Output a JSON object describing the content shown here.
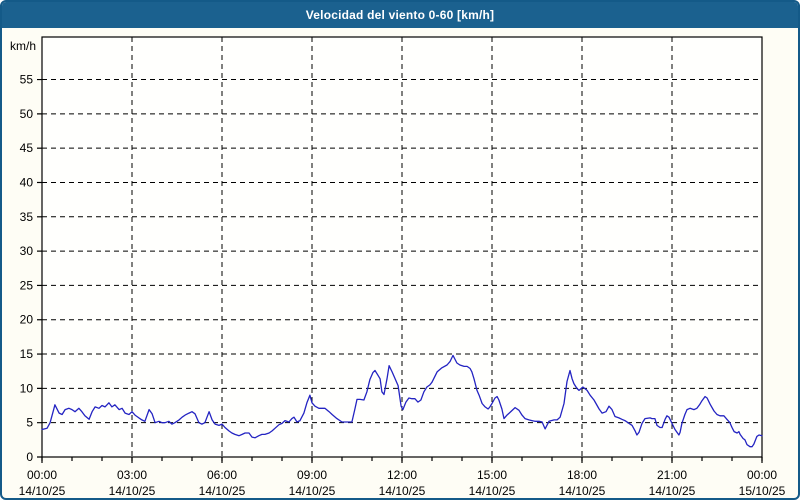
{
  "window": {
    "title": "Velocidad del viento 0-60 [km/h]"
  },
  "colors": {
    "titlebar": "#1b618f",
    "frame_border": "#145a88",
    "window_background": "#fefdf5",
    "plot_background": "#fffffd",
    "axis": "#000000",
    "gridline": "#000000",
    "series_line": "#2424c2",
    "title_text": "#ffffff",
    "tick_text": "#000000"
  },
  "chart_data": {
    "type": "line",
    "title": "Velocidad del viento 0-60 [km/h]",
    "xlabel": "",
    "ylabel": "km/h",
    "ylim": [
      0,
      61.2
    ],
    "xlim_hours": [
      0,
      24
    ],
    "grid": "dashed",
    "legend_position": "none",
    "y_ticks": [
      0,
      5,
      10,
      15,
      20,
      25,
      30,
      35,
      40,
      45,
      50,
      55
    ],
    "x_minor_tick_step_hours": 1,
    "x_ticks": [
      {
        "hours": 0,
        "time": "00:00",
        "date": "14/10/25"
      },
      {
        "hours": 3,
        "time": "03:00",
        "date": "14/10/25"
      },
      {
        "hours": 6,
        "time": "06:00",
        "date": "14/10/25"
      },
      {
        "hours": 9,
        "time": "09:00",
        "date": "14/10/25"
      },
      {
        "hours": 12,
        "time": "12:00",
        "date": "14/10/25"
      },
      {
        "hours": 15,
        "time": "15:00",
        "date": "14/10/25"
      },
      {
        "hours": 18,
        "time": "18:00",
        "date": "14/10/25"
      },
      {
        "hours": 21,
        "time": "21:00",
        "date": "14/10/25"
      },
      {
        "hours": 24,
        "time": "00:00",
        "date": "15/10/25"
      }
    ],
    "series": [
      {
        "name": "Velocidad del viento [km/h]",
        "points": [
          [
            0,
            4.0
          ],
          [
            0.17,
            4.2
          ],
          [
            0.27,
            5.0
          ],
          [
            0.4,
            7.1
          ],
          [
            0.43,
            7.6
          ],
          [
            0.57,
            6.4
          ],
          [
            0.67,
            6.2
          ],
          [
            0.77,
            6.9
          ],
          [
            0.9,
            7.1
          ],
          [
            1,
            6.9
          ],
          [
            1.1,
            6.6
          ],
          [
            1.23,
            7.1
          ],
          [
            1.33,
            6.6
          ],
          [
            1.43,
            6.0
          ],
          [
            1.57,
            5.5
          ],
          [
            1.67,
            6.6
          ],
          [
            1.77,
            7.3
          ],
          [
            1.9,
            7.1
          ],
          [
            2,
            7.5
          ],
          [
            2.1,
            7.3
          ],
          [
            2.23,
            7.9
          ],
          [
            2.33,
            7.3
          ],
          [
            2.43,
            7.6
          ],
          [
            2.57,
            6.9
          ],
          [
            2.67,
            7.1
          ],
          [
            2.77,
            6.4
          ],
          [
            2.9,
            6.2
          ],
          [
            3,
            6.6
          ],
          [
            3.1,
            6.1
          ],
          [
            3.23,
            5.7
          ],
          [
            3.33,
            5.4
          ],
          [
            3.43,
            5.2
          ],
          [
            3.57,
            6.9
          ],
          [
            3.67,
            6.3
          ],
          [
            3.77,
            5.0
          ],
          [
            3.9,
            5.2
          ],
          [
            4,
            5.0
          ],
          [
            4.1,
            5.0
          ],
          [
            4.23,
            5.2
          ],
          [
            4.33,
            4.8
          ],
          [
            4.43,
            5.0
          ],
          [
            4.57,
            5.4
          ],
          [
            4.67,
            5.8
          ],
          [
            4.77,
            6.1
          ],
          [
            4.9,
            6.4
          ],
          [
            5,
            6.6
          ],
          [
            5.1,
            6.3
          ],
          [
            5.23,
            5.0
          ],
          [
            5.33,
            4.8
          ],
          [
            5.43,
            5.0
          ],
          [
            5.57,
            6.6
          ],
          [
            5.67,
            5.4
          ],
          [
            5.77,
            4.8
          ],
          [
            5.9,
            4.6
          ],
          [
            6,
            4.8
          ],
          [
            6.1,
            4.3
          ],
          [
            6.23,
            3.8
          ],
          [
            6.33,
            3.5
          ],
          [
            6.43,
            3.3
          ],
          [
            6.57,
            3.1
          ],
          [
            6.67,
            3.3
          ],
          [
            6.77,
            3.5
          ],
          [
            6.9,
            3.5
          ],
          [
            7,
            2.9
          ],
          [
            7.1,
            2.8
          ],
          [
            7.23,
            3.1
          ],
          [
            7.33,
            3.3
          ],
          [
            7.43,
            3.3
          ],
          [
            7.57,
            3.5
          ],
          [
            7.67,
            3.8
          ],
          [
            7.77,
            4.2
          ],
          [
            7.9,
            4.7
          ],
          [
            8,
            4.9
          ],
          [
            8.1,
            5.3
          ],
          [
            8.23,
            5.1
          ],
          [
            8.33,
            5.6
          ],
          [
            8.4,
            5.8
          ],
          [
            8.5,
            5.1
          ],
          [
            8.6,
            5.3
          ],
          [
            8.73,
            6.4
          ],
          [
            8.83,
            7.9
          ],
          [
            8.93,
            9.0
          ],
          [
            9,
            7.9
          ],
          [
            9.1,
            7.4
          ],
          [
            9.23,
            7.1
          ],
          [
            9.33,
            7.1
          ],
          [
            9.43,
            7.1
          ],
          [
            9.57,
            6.6
          ],
          [
            9.67,
            6.2
          ],
          [
            9.83,
            5.6
          ],
          [
            10,
            5.1
          ],
          [
            10.17,
            5.1
          ],
          [
            10.33,
            5.1
          ],
          [
            10.43,
            7.0
          ],
          [
            10.5,
            8.4
          ],
          [
            10.6,
            8.4
          ],
          [
            10.73,
            8.3
          ],
          [
            10.83,
            9.5
          ],
          [
            10.93,
            11.3
          ],
          [
            11.03,
            12.3
          ],
          [
            11.1,
            12.6
          ],
          [
            11.2,
            11.9
          ],
          [
            11.27,
            11.4
          ],
          [
            11.33,
            9.5
          ],
          [
            11.4,
            9.1
          ],
          [
            11.5,
            11.4
          ],
          [
            11.57,
            13.3
          ],
          [
            11.67,
            12.4
          ],
          [
            11.77,
            11.4
          ],
          [
            11.87,
            10.4
          ],
          [
            11.97,
            7.4
          ],
          [
            12.03,
            6.9
          ],
          [
            12.13,
            8.0
          ],
          [
            12.23,
            8.6
          ],
          [
            12.33,
            8.5
          ],
          [
            12.43,
            8.5
          ],
          [
            12.53,
            8.0
          ],
          [
            12.63,
            8.3
          ],
          [
            12.73,
            9.5
          ],
          [
            12.83,
            10.2
          ],
          [
            12.93,
            10.5
          ],
          [
            13,
            10.9
          ],
          [
            13.17,
            12.4
          ],
          [
            13.33,
            13.0
          ],
          [
            13.5,
            13.4
          ],
          [
            13.6,
            13.9
          ],
          [
            13.7,
            14.8
          ],
          [
            13.77,
            14.2
          ],
          [
            13.83,
            13.7
          ],
          [
            13.93,
            13.4
          ],
          [
            14.07,
            13.2
          ],
          [
            14.17,
            13.2
          ],
          [
            14.27,
            12.9
          ],
          [
            14.33,
            12.4
          ],
          [
            14.4,
            11.4
          ],
          [
            14.5,
            9.7
          ],
          [
            14.57,
            9.0
          ],
          [
            14.67,
            7.8
          ],
          [
            14.77,
            7.3
          ],
          [
            14.87,
            7.0
          ],
          [
            14.93,
            7.3
          ],
          [
            15,
            7.8
          ],
          [
            15.1,
            8.6
          ],
          [
            15.17,
            8.8
          ],
          [
            15.23,
            8.3
          ],
          [
            15.33,
            7.0
          ],
          [
            15.4,
            5.6
          ],
          [
            15.5,
            6.1
          ],
          [
            15.6,
            6.5
          ],
          [
            15.77,
            7.2
          ],
          [
            15.9,
            6.8
          ],
          [
            16,
            6.1
          ],
          [
            16.1,
            5.6
          ],
          [
            16.23,
            5.4
          ],
          [
            16.33,
            5.3
          ],
          [
            16.43,
            5.2
          ],
          [
            16.57,
            5.2
          ],
          [
            16.67,
            5.1
          ],
          [
            16.77,
            4.1
          ],
          [
            16.83,
            4.6
          ],
          [
            16.9,
            5.2
          ],
          [
            17.07,
            5.4
          ],
          [
            17.17,
            5.4
          ],
          [
            17.27,
            5.8
          ],
          [
            17.4,
            7.8
          ],
          [
            17.5,
            11.0
          ],
          [
            17.6,
            12.6
          ],
          [
            17.67,
            11.4
          ],
          [
            17.73,
            10.7
          ],
          [
            17.83,
            10.0
          ],
          [
            17.9,
            9.7
          ],
          [
            18.03,
            10.2
          ],
          [
            18.17,
            9.7
          ],
          [
            18.27,
            9.0
          ],
          [
            18.4,
            8.3
          ],
          [
            18.57,
            7.0
          ],
          [
            18.67,
            6.4
          ],
          [
            18.8,
            6.6
          ],
          [
            18.9,
            7.4
          ],
          [
            19,
            6.9
          ],
          [
            19.1,
            5.9
          ],
          [
            19.23,
            5.7
          ],
          [
            19.33,
            5.5
          ],
          [
            19.43,
            5.3
          ],
          [
            19.57,
            4.9
          ],
          [
            19.67,
            4.6
          ],
          [
            19.77,
            3.8
          ],
          [
            19.83,
            3.2
          ],
          [
            19.9,
            3.6
          ],
          [
            20,
            4.9
          ],
          [
            20.1,
            5.6
          ],
          [
            20.27,
            5.7
          ],
          [
            20.33,
            5.6
          ],
          [
            20.43,
            5.6
          ],
          [
            20.5,
            4.6
          ],
          [
            20.6,
            4.3
          ],
          [
            20.67,
            4.3
          ],
          [
            20.77,
            5.5
          ],
          [
            20.83,
            6.0
          ],
          [
            20.9,
            5.8
          ],
          [
            21,
            4.9
          ],
          [
            21.1,
            4.0
          ],
          [
            21.23,
            3.2
          ],
          [
            21.27,
            3.6
          ],
          [
            21.33,
            4.9
          ],
          [
            21.43,
            6.2
          ],
          [
            21.5,
            6.9
          ],
          [
            21.6,
            7.1
          ],
          [
            21.73,
            6.9
          ],
          [
            21.83,
            7.1
          ],
          [
            21.93,
            7.7
          ],
          [
            22,
            8.2
          ],
          [
            22.1,
            8.8
          ],
          [
            22.17,
            8.6
          ],
          [
            22.27,
            7.7
          ],
          [
            22.4,
            6.7
          ],
          [
            22.5,
            6.2
          ],
          [
            22.6,
            6.0
          ],
          [
            22.73,
            6.0
          ],
          [
            22.83,
            5.5
          ],
          [
            22.93,
            5.0
          ],
          [
            23,
            4.3
          ],
          [
            23.07,
            3.7
          ],
          [
            23.17,
            3.5
          ],
          [
            23.23,
            3.7
          ],
          [
            23.27,
            3.3
          ],
          [
            23.37,
            2.7
          ],
          [
            23.43,
            2.5
          ],
          [
            23.5,
            1.8
          ],
          [
            23.6,
            1.5
          ],
          [
            23.67,
            1.5
          ],
          [
            23.73,
            1.9
          ],
          [
            23.83,
            3.0
          ],
          [
            23.9,
            3.2
          ],
          [
            24,
            3.1
          ]
        ]
      }
    ]
  }
}
